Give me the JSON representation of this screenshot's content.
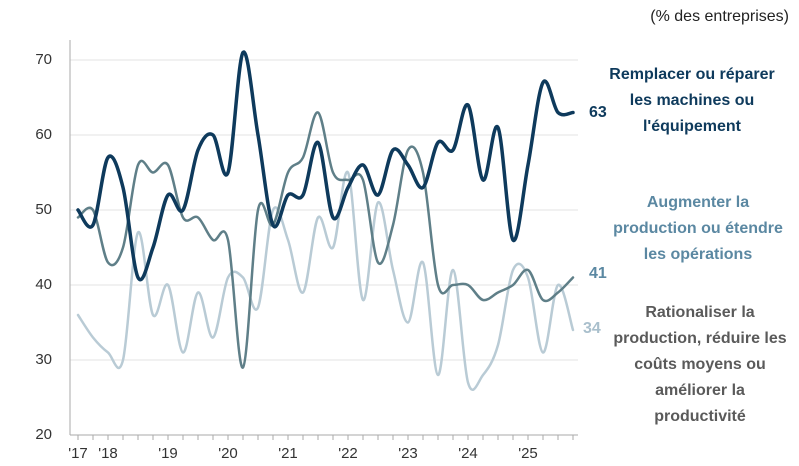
{
  "chart_data": {
    "type": "line",
    "subtitle": "(% des entreprises)",
    "categories": [
      "'17",
      null,
      "'18",
      null,
      null,
      null,
      "'19",
      null,
      null,
      null,
      "'20",
      null,
      null,
      null,
      "'21",
      null,
      null,
      null,
      "'22",
      null,
      null,
      null,
      "'23",
      null,
      null,
      null,
      "'24",
      null,
      null,
      null,
      "'25",
      null,
      null,
      null
    ],
    "series": [
      {
        "name": "Remplacer ou réparer les machines ou l'équipement",
        "color": "#0e3a5c",
        "values": [
          50,
          48,
          57,
          53,
          41,
          45,
          52,
          50,
          58,
          60,
          55,
          71,
          60,
          48,
          52,
          52,
          59,
          49,
          53,
          56,
          52,
          58,
          56,
          53,
          59,
          58,
          64,
          54,
          61,
          46,
          56,
          67,
          63,
          63
        ]
      },
      {
        "name": "Augmenter la production ou étendre les opérations",
        "color": "#5f7f88",
        "values": [
          49,
          50,
          43,
          45,
          56,
          55,
          56,
          49,
          49,
          46,
          46,
          29,
          50,
          48,
          55,
          57,
          63,
          55,
          54,
          54,
          43,
          48,
          58,
          55,
          40,
          40,
          40,
          38,
          39,
          40,
          42,
          38,
          39,
          41
        ]
      },
      {
        "name": "Rationaliser la production, réduire les coûts moyens ou améliorer la productivité",
        "color": "#b9cbd5",
        "values": [
          36,
          33,
          31,
          30,
          47,
          36,
          40,
          31,
          39,
          33,
          41,
          41,
          37,
          50,
          46,
          39,
          49,
          45,
          55,
          38,
          51,
          42,
          35,
          43,
          28,
          42,
          27,
          28,
          32,
          42,
          41,
          31,
          40,
          34
        ]
      }
    ],
    "ylim": [
      20,
      72
    ],
    "yticks": [
      20,
      30,
      40,
      50,
      60,
      70
    ],
    "grid": true
  }
}
